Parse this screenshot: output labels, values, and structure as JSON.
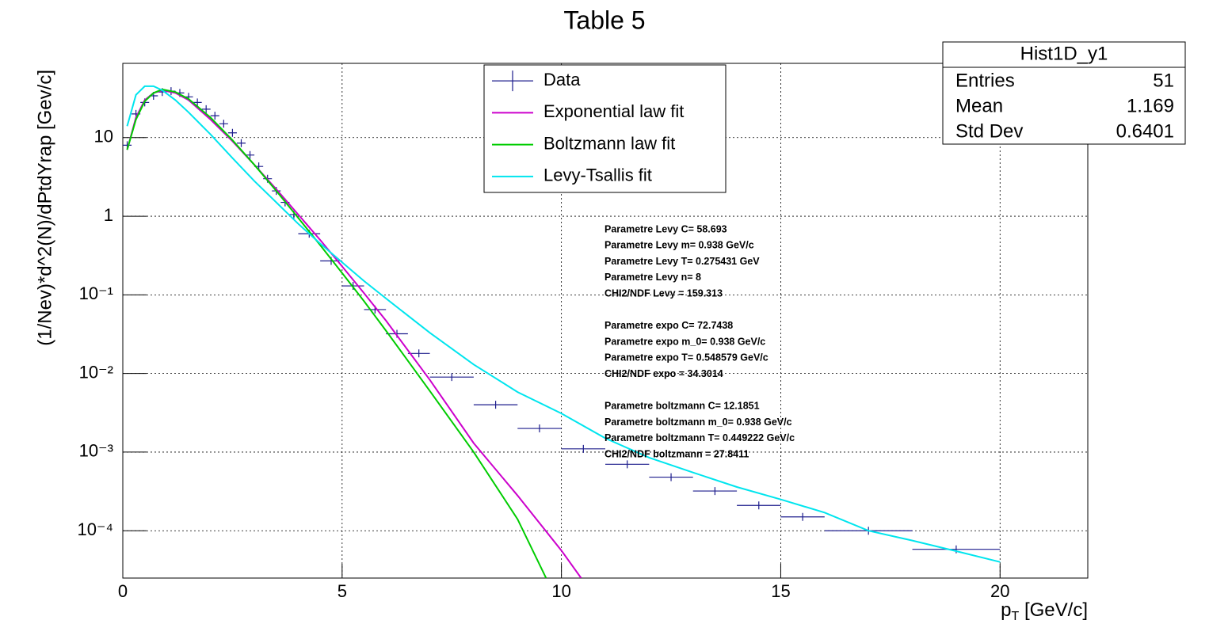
{
  "chart_data": {
    "type": "histogram-fit",
    "title": "Table 5",
    "x_label": [
      "p",
      "T",
      " [GeV/c]"
    ],
    "y_label": "(1/Nev)*d^2(N)/dPtdYrap  [Gev/c]",
    "ylog": true,
    "grid": true,
    "xlim": [
      0,
      22
    ],
    "xticks": [
      0,
      5,
      10,
      15,
      20
    ],
    "ylim": [
      2.5e-05,
      88
    ],
    "yticks": [
      {
        "value": 10,
        "label": "10"
      },
      {
        "value": 1,
        "label": "1"
      },
      {
        "value": 0.1,
        "label": "10⁻¹"
      },
      {
        "value": 0.01,
        "label": "10⁻²"
      },
      {
        "value": 0.001,
        "label": "10⁻³"
      },
      {
        "value": 0.0001,
        "label": "10⁻⁴"
      }
    ],
    "series": [
      {
        "name": "Data",
        "color": "#1c1c8c",
        "style": "points",
        "x": [
          0.1,
          0.3,
          0.5,
          0.7,
          0.9,
          1.1,
          1.3,
          1.5,
          1.7,
          1.9,
          2.1,
          2.3,
          2.5,
          2.7,
          2.9,
          3.1,
          3.3,
          3.5,
          3.7,
          3.9,
          4.25,
          4.75,
          5.25,
          5.75,
          6.25,
          6.75,
          7.5,
          8.5,
          9.5,
          10.5,
          11.5,
          12.5,
          13.5,
          14.5,
          15.5,
          17,
          19
        ],
        "xerr": [
          0.1,
          0.1,
          0.1,
          0.1,
          0.1,
          0.1,
          0.1,
          0.1,
          0.1,
          0.1,
          0.1,
          0.1,
          0.1,
          0.1,
          0.1,
          0.1,
          0.1,
          0.1,
          0.1,
          0.1,
          0.25,
          0.25,
          0.25,
          0.25,
          0.25,
          0.25,
          0.5,
          0.5,
          0.5,
          0.5,
          0.5,
          0.5,
          0.5,
          0.5,
          0.5,
          1,
          1
        ],
        "values": [
          8,
          20,
          28,
          34,
          38,
          39,
          37,
          33,
          28,
          23,
          19,
          15,
          11.5,
          8.5,
          6,
          4.3,
          3,
          2.1,
          1.5,
          1.05,
          0.6,
          0.27,
          0.13,
          0.065,
          0.032,
          0.018,
          0.009,
          0.004,
          0.002,
          0.0011,
          0.0007,
          0.00048,
          0.00032,
          0.00021,
          0.00015,
          0.0001,
          5.8e-05
        ]
      },
      {
        "name": "Exponential law fit",
        "color": "#cc00cc",
        "style": "line",
        "x": [
          0.1,
          0.3,
          0.5,
          0.7,
          0.9,
          1.2,
          1.5,
          2,
          2.5,
          3,
          3.5,
          4,
          4.5,
          5,
          5.5,
          6,
          7,
          8,
          9,
          10,
          10.45
        ],
        "values": [
          7,
          18,
          30,
          37,
          40,
          37,
          30,
          17,
          9,
          4.5,
          2.2,
          1.05,
          0.5,
          0.23,
          0.105,
          0.047,
          0.0083,
          0.0013,
          0.00028,
          5.6e-05,
          2.5e-05
        ]
      },
      {
        "name": "Boltzmann law fit",
        "color": "#00cc00",
        "style": "line",
        "x": [
          0.1,
          0.3,
          0.5,
          0.7,
          0.9,
          1.2,
          1.5,
          2,
          2.5,
          3,
          3.5,
          4,
          4.5,
          5,
          5.5,
          6,
          7,
          8,
          9,
          9.65
        ],
        "values": [
          7,
          17,
          29,
          37,
          41,
          38,
          31,
          18,
          9.3,
          4.5,
          2.1,
          0.95,
          0.43,
          0.19,
          0.083,
          0.035,
          0.006,
          0.001,
          0.00014,
          2.5e-05
        ]
      },
      {
        "name": "Levy-Tsallis fit",
        "color": "#00e5ee",
        "style": "line",
        "x": [
          0.1,
          0.3,
          0.5,
          0.7,
          0.9,
          1.2,
          1.5,
          2,
          2.5,
          3,
          3.5,
          4,
          4.5,
          5,
          5.5,
          6,
          7,
          8,
          9,
          10,
          11,
          12,
          13,
          14,
          15,
          16,
          17,
          18,
          19,
          20
        ],
        "values": [
          14,
          35,
          45,
          45,
          40,
          30,
          21,
          11,
          5.5,
          2.8,
          1.5,
          0.8,
          0.45,
          0.26,
          0.15,
          0.09,
          0.033,
          0.013,
          0.0058,
          0.0031,
          0.0015,
          0.00085,
          0.00055,
          0.00036,
          0.00025,
          0.00017,
          0.0001,
          7.5e-05,
          5.5e-05,
          4e-05
        ]
      }
    ],
    "stats": {
      "title": "Hist1D_y1",
      "rows": [
        [
          "Entries",
          "51"
        ],
        [
          "Mean",
          "1.169"
        ],
        [
          "Std Dev",
          "0.6401"
        ]
      ]
    },
    "annotations": [
      [
        "Parametre Levy C= 58.693",
        "Parametre Levy m= 0.938 GeV/c",
        "Parametre Levy T= 0.275431 GeV",
        "Parametre Levy n= 8",
        "CHI2/NDF Levy = 159.313"
      ],
      [
        "Parametre expo C= 72.7438",
        "Parametre expo m_0= 0.938 GeV/c",
        "Parametre expo T= 0.548579 GeV/c",
        "CHI2/NDF expo = 34.3014"
      ],
      [
        "Parametre boltzmann C= 12.1851",
        "Parametre boltzmann m_0= 0.938 GeV/c",
        "Parametre boltzmann T= 0.449222 GeV/c",
        "CHI2/NDF boltzmann = 27.8411"
      ]
    ]
  }
}
